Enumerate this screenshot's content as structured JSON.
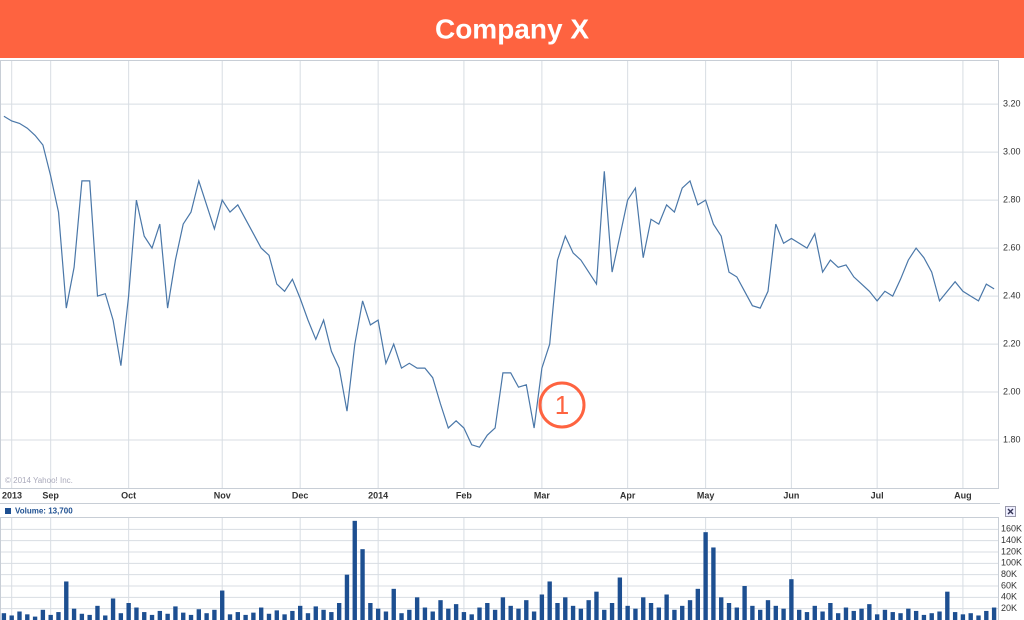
{
  "chart_data": [
    {
      "type": "line",
      "title": "Company X",
      "credit": "© 2014 Yahoo! Inc.",
      "annotation": "1",
      "color": "#4a77a8",
      "grid": true,
      "categories": [
        null,
        "2013",
        null,
        null,
        null,
        null,
        "Sep",
        null,
        null,
        null,
        null,
        null,
        null,
        null,
        null,
        null,
        "Oct",
        null,
        null,
        null,
        null,
        null,
        null,
        null,
        null,
        null,
        null,
        null,
        "Nov",
        null,
        null,
        null,
        null,
        null,
        null,
        null,
        null,
        null,
        "Dec",
        null,
        null,
        null,
        null,
        null,
        null,
        null,
        null,
        null,
        "2014",
        null,
        null,
        null,
        null,
        null,
        null,
        null,
        null,
        null,
        null,
        "Feb",
        null,
        null,
        null,
        null,
        null,
        null,
        null,
        null,
        null,
        "Mar",
        null,
        null,
        null,
        null,
        null,
        null,
        null,
        null,
        null,
        null,
        "Apr",
        null,
        null,
        null,
        null,
        null,
        null,
        null,
        null,
        null,
        "May",
        null,
        null,
        null,
        null,
        null,
        null,
        null,
        null,
        null,
        null,
        "Jun",
        null,
        null,
        null,
        null,
        null,
        null,
        null,
        null,
        null,
        null,
        "Jul",
        null,
        null,
        null,
        null,
        null,
        null,
        null,
        null,
        null,
        null,
        "Aug",
        null,
        null,
        null,
        null
      ],
      "values": [
        3.15,
        3.13,
        3.12,
        3.1,
        3.07,
        3.03,
        2.9,
        2.75,
        2.35,
        2.52,
        2.88,
        2.88,
        2.4,
        2.41,
        2.3,
        2.11,
        2.4,
        2.8,
        2.65,
        2.6,
        2.7,
        2.35,
        2.55,
        2.7,
        2.75,
        2.88,
        2.78,
        2.68,
        2.8,
        2.75,
        2.78,
        2.72,
        2.66,
        2.6,
        2.57,
        2.45,
        2.42,
        2.47,
        2.39,
        2.3,
        2.22,
        2.3,
        2.17,
        2.1,
        1.92,
        2.2,
        2.38,
        2.28,
        2.3,
        2.12,
        2.2,
        2.1,
        2.12,
        2.1,
        2.1,
        2.06,
        1.95,
        1.85,
        1.88,
        1.85,
        1.78,
        1.77,
        1.82,
        1.85,
        2.08,
        2.08,
        2.02,
        2.03,
        1.85,
        2.1,
        2.2,
        2.55,
        2.65,
        2.58,
        2.55,
        2.5,
        2.45,
        2.92,
        2.5,
        2.65,
        2.8,
        2.85,
        2.56,
        2.72,
        2.7,
        2.78,
        2.75,
        2.85,
        2.88,
        2.78,
        2.8,
        2.7,
        2.65,
        2.5,
        2.48,
        2.42,
        2.36,
        2.35,
        2.42,
        2.7,
        2.62,
        2.64,
        2.62,
        2.6,
        2.66,
        2.5,
        2.55,
        2.52,
        2.53,
        2.48,
        2.45,
        2.42,
        2.38,
        2.42,
        2.4,
        2.47,
        2.55,
        2.6,
        2.56,
        2.5,
        2.38,
        2.42,
        2.46,
        2.42,
        2.4,
        2.38,
        2.45,
        2.43
      ],
      "ylim": [
        1.6,
        3.38
      ],
      "yticks": [
        {
          "value": 1.8,
          "label": "1.80"
        },
        {
          "value": 2.0,
          "label": "2.00"
        },
        {
          "value": 2.2,
          "label": "2.20"
        },
        {
          "value": 2.4,
          "label": "2.40"
        },
        {
          "value": 2.6,
          "label": "2.60"
        },
        {
          "value": 2.8,
          "label": "2.80"
        },
        {
          "value": 3.0,
          "label": "3.00"
        },
        {
          "value": 3.2,
          "label": "3.20"
        }
      ]
    },
    {
      "type": "bar",
      "grid": true,
      "series": [
        {
          "name": "Volume: 13,700",
          "color": "#1d4f91",
          "values": [
            12000,
            8000,
            15000,
            10000,
            6000,
            18000,
            9000,
            14000,
            68000,
            20000,
            11000,
            9000,
            25000,
            8000,
            38000,
            12000,
            30000,
            22000,
            14000,
            9000,
            16000,
            11000,
            24000,
            13000,
            9000,
            19000,
            12000,
            18000,
            52000,
            10000,
            14000,
            9000,
            13000,
            22000,
            11000,
            17000,
            10000,
            16000,
            25000,
            12000,
            24000,
            18000,
            14000,
            30000,
            80000,
            175000,
            125000,
            30000,
            20000,
            15000,
            55000,
            12000,
            18000,
            40000,
            22000,
            15000,
            35000,
            20000,
            28000,
            14000,
            10000,
            22000,
            30000,
            18000,
            40000,
            25000,
            20000,
            35000,
            15000,
            45000,
            68000,
            30000,
            40000,
            25000,
            20000,
            35000,
            50000,
            18000,
            30000,
            75000,
            25000,
            20000,
            40000,
            30000,
            22000,
            45000,
            18000,
            25000,
            35000,
            55000,
            155000,
            128000,
            40000,
            30000,
            22000,
            60000,
            25000,
            18000,
            35000,
            25000,
            20000,
            72000,
            18000,
            14000,
            25000,
            15000,
            30000,
            12000,
            22000,
            16000,
            20000,
            28000,
            10000,
            18000,
            14000,
            12000,
            20000,
            16000,
            9000,
            12000,
            15000,
            50000,
            14000,
            10000,
            12000,
            8000,
            16000,
            22000
          ]
        }
      ],
      "ylim": [
        0,
        180000
      ],
      "yticks": [
        {
          "value": 20000,
          "label": "20K"
        },
        {
          "value": 40000,
          "label": "40K"
        },
        {
          "value": 60000,
          "label": "60K"
        },
        {
          "value": 80000,
          "label": "80K"
        },
        {
          "value": 100000,
          "label": "100K"
        },
        {
          "value": 120000,
          "label": "120K"
        },
        {
          "value": 140000,
          "label": "140K"
        },
        {
          "value": 160000,
          "label": "160K"
        }
      ]
    }
  ]
}
